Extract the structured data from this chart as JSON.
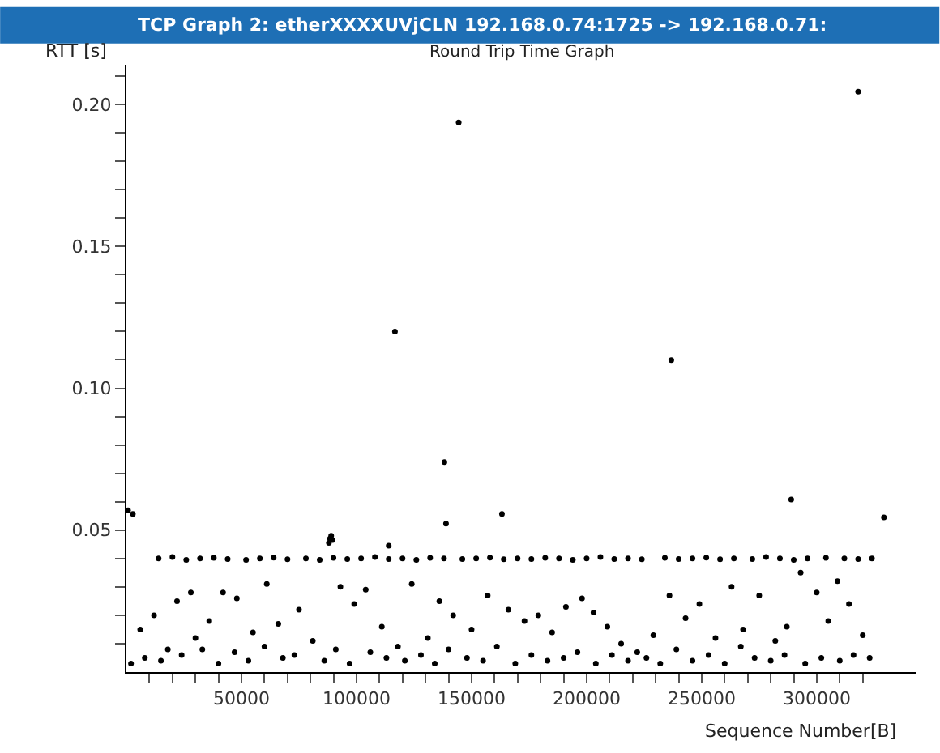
{
  "chart_data": {
    "type": "scatter",
    "title": "TCP Graph 2: etherXXXXUVjCLN 192.168.0.74:1725 -> 192.168.0.71:",
    "subtitle": "Round Trip Time Graph",
    "xlabel": "Sequence Number[B]",
    "ylabel": "RTT [s]",
    "xlim": [
      0,
      343000
    ],
    "ylim": [
      0,
      0.214
    ],
    "xticks": [
      {
        "value": 10000,
        "label": null
      },
      {
        "value": 20000,
        "label": null
      },
      {
        "value": 30000,
        "label": null
      },
      {
        "value": 40000,
        "label": null
      },
      50000,
      {
        "value": 60000,
        "label": null
      },
      {
        "value": 70000,
        "label": null
      },
      {
        "value": 80000,
        "label": null
      },
      {
        "value": 90000,
        "label": null
      },
      100000,
      {
        "value": 110000,
        "label": null
      },
      {
        "value": 120000,
        "label": null
      },
      {
        "value": 130000,
        "label": null
      },
      {
        "value": 140000,
        "label": null
      },
      150000,
      {
        "value": 160000,
        "label": null
      },
      {
        "value": 170000,
        "label": null
      },
      {
        "value": 180000,
        "label": null
      },
      {
        "value": 190000,
        "label": null
      },
      200000,
      {
        "value": 210000,
        "label": null
      },
      {
        "value": 220000,
        "label": null
      },
      {
        "value": 230000,
        "label": null
      },
      {
        "value": 240000,
        "label": null
      },
      250000,
      {
        "value": 260000,
        "label": null
      },
      {
        "value": 270000,
        "label": null
      },
      {
        "value": 280000,
        "label": null
      },
      {
        "value": 290000,
        "label": null
      },
      300000,
      {
        "value": 310000,
        "label": null
      },
      {
        "value": 320000,
        "label": null
      }
    ],
    "yticks": [
      {
        "value": 0.01,
        "label": null
      },
      {
        "value": 0.02,
        "label": null
      },
      {
        "value": 0.03,
        "label": null
      },
      {
        "value": 0.04,
        "label": null
      },
      0.05,
      {
        "value": 0.06,
        "label": null
      },
      {
        "value": 0.07,
        "label": null
      },
      {
        "value": 0.08,
        "label": null
      },
      {
        "value": 0.09,
        "label": null
      },
      {
        "value": 0.1,
        "label": "0.10"
      },
      {
        "value": 0.11,
        "label": null
      },
      {
        "value": 0.12,
        "label": null
      },
      {
        "value": 0.13,
        "label": null
      },
      {
        "value": 0.14,
        "label": null
      },
      0.15,
      {
        "value": 0.16,
        "label": null
      },
      {
        "value": 0.17,
        "label": null
      },
      {
        "value": 0.18,
        "label": null
      },
      {
        "value": 0.19,
        "label": null
      },
      {
        "value": 0.2,
        "label": "0.20"
      },
      {
        "value": 0.21,
        "label": null
      }
    ],
    "marker": "circle",
    "series": [
      {
        "color": "#000000",
        "x": [
          700,
          2800,
          116700,
          138200,
          138900,
          144400,
          163200,
          236800,
          288900,
          318000,
          329200,
          88000,
          88500,
          89000,
          89600,
          114000,
          14000,
          20000,
          26000,
          32000,
          38000,
          44000,
          52000,
          58000,
          64000,
          70000,
          78000,
          84000,
          90000,
          96000,
          102000,
          108000,
          114000,
          120000,
          126000,
          132000,
          138000,
          146000,
          152000,
          158000,
          164000,
          170000,
          176000,
          182000,
          188000,
          194000,
          200000,
          206000,
          212000,
          218000,
          224000,
          234000,
          240000,
          246000,
          252000,
          258000,
          264000,
          272000,
          278000,
          284000,
          290000,
          296000,
          304000,
          312000,
          318000,
          324000,
          6000,
          12000,
          18000,
          22000,
          28000,
          30000,
          36000,
          42000,
          48000,
          55000,
          61000,
          66000,
          75000,
          81000,
          93000,
          99000,
          104000,
          111000,
          118000,
          124000,
          131000,
          136000,
          142000,
          150000,
          157000,
          166000,
          173000,
          179000,
          185000,
          191000,
          198000,
          203000,
          209000,
          215000,
          222000,
          229000,
          236000,
          243000,
          249000,
          256000,
          263000,
          268000,
          275000,
          282000,
          287000,
          293000,
          300000,
          305000,
          309000,
          314000,
          320000,
          2000,
          8000,
          15000,
          24000,
          33000,
          40000,
          47000,
          53000,
          60000,
          68000,
          73000,
          86000,
          91000,
          97000,
          106000,
          113000,
          121000,
          128000,
          134000,
          140000,
          148000,
          155000,
          161000,
          169000,
          176000,
          183000,
          190000,
          196000,
          204000,
          211000,
          218000,
          226000,
          232000,
          239000,
          246000,
          253000,
          260000,
          267000,
          273000,
          280000,
          286000,
          295000,
          302000,
          310000,
          316000,
          323000
        ],
        "values": [
          0.057,
          0.0557,
          0.12,
          0.074,
          0.0523,
          0.1937,
          0.0557,
          0.1099,
          0.0608,
          0.2045,
          0.0545,
          0.0455,
          0.047,
          0.048,
          0.0465,
          0.0445,
          0.04,
          0.0405,
          0.0395,
          0.04,
          0.0402,
          0.0398,
          0.0395,
          0.04,
          0.0403,
          0.0397,
          0.04,
          0.0395,
          0.0402,
          0.0398,
          0.04,
          0.0405,
          0.0398,
          0.04,
          0.0395,
          0.0402,
          0.04,
          0.0398,
          0.04,
          0.0403,
          0.0397,
          0.04,
          0.0398,
          0.0402,
          0.04,
          0.0395,
          0.04,
          0.0405,
          0.0398,
          0.04,
          0.0397,
          0.0402,
          0.0398,
          0.04,
          0.0403,
          0.0397,
          0.04,
          0.0398,
          0.0405,
          0.04,
          0.0395,
          0.04,
          0.0402,
          0.04,
          0.0398,
          0.04,
          0.015,
          0.02,
          0.008,
          0.025,
          0.028,
          0.012,
          0.018,
          0.028,
          0.026,
          0.014,
          0.031,
          0.017,
          0.022,
          0.011,
          0.03,
          0.024,
          0.029,
          0.016,
          0.009,
          0.031,
          0.012,
          0.025,
          0.02,
          0.015,
          0.027,
          0.022,
          0.018,
          0.02,
          0.014,
          0.023,
          0.026,
          0.021,
          0.016,
          0.01,
          0.007,
          0.013,
          0.027,
          0.019,
          0.024,
          0.012,
          0.03,
          0.015,
          0.027,
          0.011,
          0.016,
          0.035,
          0.028,
          0.018,
          0.032,
          0.024,
          0.013,
          0.003,
          0.005,
          0.004,
          0.006,
          0.008,
          0.003,
          0.007,
          0.004,
          0.009,
          0.005,
          0.006,
          0.004,
          0.008,
          0.003,
          0.007,
          0.005,
          0.004,
          0.006,
          0.003,
          0.008,
          0.005,
          0.004,
          0.009,
          0.003,
          0.006,
          0.004,
          0.005,
          0.007,
          0.003,
          0.006,
          0.004,
          0.005,
          0.003,
          0.008,
          0.004,
          0.006,
          0.003,
          0.009,
          0.005,
          0.004,
          0.006,
          0.003,
          0.005,
          0.004,
          0.006,
          0.005
        ]
      }
    ]
  }
}
